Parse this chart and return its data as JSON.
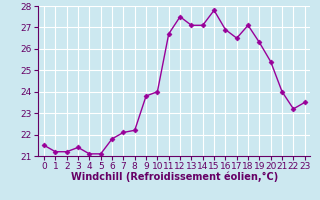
{
  "x": [
    0,
    1,
    2,
    3,
    4,
    5,
    6,
    7,
    8,
    9,
    10,
    11,
    12,
    13,
    14,
    15,
    16,
    17,
    18,
    19,
    20,
    21,
    22,
    23
  ],
  "y": [
    21.5,
    21.2,
    21.2,
    21.4,
    21.1,
    21.1,
    21.8,
    22.1,
    22.2,
    23.8,
    24.0,
    26.7,
    27.5,
    27.1,
    27.1,
    27.8,
    26.9,
    26.5,
    27.1,
    26.3,
    25.4,
    24.0,
    23.2,
    23.5
  ],
  "line_color": "#990099",
  "marker": "D",
  "marker_size": 2.5,
  "bg_color": "#cce8f0",
  "grid_color": "#ffffff",
  "xlabel": "Windchill (Refroidissement éolien,°C)",
  "xlabel_color": "#660066",
  "ylim": [
    21,
    28
  ],
  "xlim": [
    -0.5,
    23.5
  ],
  "yticks": [
    21,
    22,
    23,
    24,
    25,
    26,
    27,
    28
  ],
  "xticks": [
    0,
    1,
    2,
    3,
    4,
    5,
    6,
    7,
    8,
    9,
    10,
    11,
    12,
    13,
    14,
    15,
    16,
    17,
    18,
    19,
    20,
    21,
    22,
    23
  ],
  "tick_color": "#660066",
  "tick_labelsize": 6.5,
  "xlabel_fontsize": 7,
  "linewidth": 1.0
}
